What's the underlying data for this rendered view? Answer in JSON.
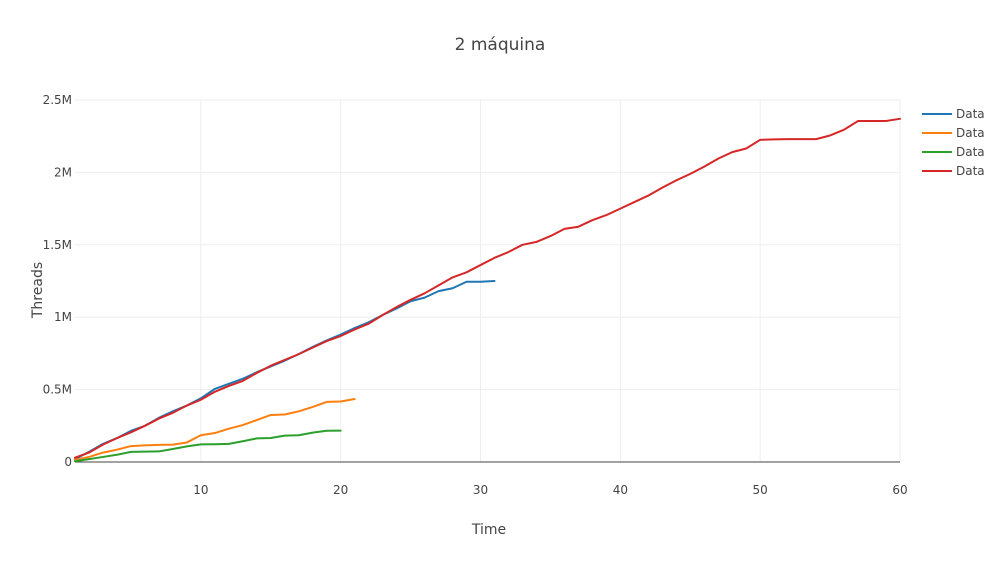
{
  "chart_data": {
    "type": "line",
    "title": "2 máquina",
    "xlabel": "Time",
    "ylabel": "Threads",
    "xlim": [
      1,
      60
    ],
    "ylim": [
      0,
      2500000
    ],
    "x_ticks": [
      10,
      20,
      30,
      40,
      50,
      60
    ],
    "x_tick_labels": [
      "10",
      "20",
      "30",
      "40",
      "50",
      "60"
    ],
    "y_ticks": [
      0,
      500000,
      1000000,
      1500000,
      2000000,
      2500000
    ],
    "y_tick_labels": [
      "0",
      "0.5M",
      "1M",
      "1.5M",
      "2M",
      "2.5M"
    ],
    "grid": true,
    "legend_position": "top-right",
    "series": [
      {
        "name": "Data",
        "color": "#1f77b4",
        "x": [
          1,
          2,
          3,
          4,
          5,
          6,
          7,
          8,
          9,
          10,
          11,
          12,
          13,
          14,
          15,
          16,
          17,
          18,
          19,
          20,
          21,
          22,
          23,
          24,
          25,
          26,
          27,
          28,
          29,
          30,
          31
        ],
        "y": [
          20000,
          70000,
          125000,
          165000,
          215000,
          250000,
          305000,
          350000,
          390000,
          440000,
          505000,
          540000,
          575000,
          620000,
          660000,
          700000,
          745000,
          795000,
          840000,
          880000,
          925000,
          965000,
          1015000,
          1060000,
          1110000,
          1135000,
          1180000,
          1200000,
          1245000,
          1245000,
          1250000
        ]
      },
      {
        "name": "Data",
        "color": "#ff7f0e",
        "x": [
          1,
          2,
          3,
          4,
          5,
          6,
          7,
          8,
          9,
          10,
          11,
          12,
          13,
          14,
          15,
          16,
          17,
          18,
          19,
          20,
          21
        ],
        "y": [
          15000,
          35000,
          65000,
          85000,
          110000,
          115000,
          118000,
          120000,
          135000,
          185000,
          200000,
          230000,
          255000,
          290000,
          325000,
          328000,
          350000,
          380000,
          415000,
          418000,
          435000
        ]
      },
      {
        "name": "Data",
        "color": "#2ca02c",
        "x": [
          1,
          2,
          3,
          4,
          5,
          6,
          7,
          8,
          9,
          10,
          11,
          12,
          13,
          14,
          15,
          16,
          17,
          18,
          19,
          20
        ],
        "y": [
          5000,
          20000,
          35000,
          50000,
          70000,
          72000,
          73000,
          90000,
          108000,
          122000,
          123000,
          125000,
          143000,
          163000,
          166000,
          182000,
          185000,
          203000,
          216000,
          217000
        ]
      },
      {
        "name": "Data",
        "color": "#d62728",
        "x": [
          1,
          2,
          3,
          4,
          5,
          6,
          7,
          8,
          9,
          10,
          11,
          12,
          13,
          14,
          15,
          16,
          17,
          18,
          19,
          20,
          21,
          22,
          23,
          24,
          25,
          26,
          27,
          28,
          29,
          30,
          31,
          32,
          33,
          34,
          35,
          36,
          37,
          38,
          39,
          40,
          41,
          42,
          43,
          44,
          45,
          46,
          47,
          48,
          49,
          50,
          51,
          52,
          53,
          54,
          55,
          56,
          57,
          58,
          59,
          60
        ],
        "y": [
          30000,
          65000,
          120000,
          165000,
          205000,
          250000,
          300000,
          340000,
          390000,
          430000,
          485000,
          525000,
          560000,
          615000,
          665000,
          705000,
          745000,
          790000,
          835000,
          870000,
          915000,
          955000,
          1015000,
          1070000,
          1120000,
          1165000,
          1220000,
          1275000,
          1310000,
          1360000,
          1410000,
          1450000,
          1500000,
          1520000,
          1560000,
          1610000,
          1625000,
          1670000,
          1705000,
          1750000,
          1795000,
          1840000,
          1895000,
          1945000,
          1990000,
          2040000,
          2095000,
          2140000,
          2165000,
          2225000,
          2228000,
          2230000,
          2230000,
          2230000,
          2255000,
          2295000,
          2355000,
          2355000,
          2355000,
          2370000
        ]
      }
    ]
  }
}
